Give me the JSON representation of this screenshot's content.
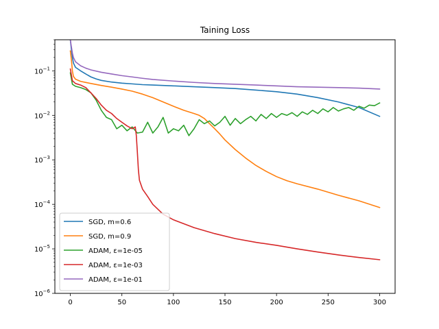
{
  "chart_data": {
    "type": "line",
    "title": "Taining Loss",
    "xlabel": "",
    "ylabel": "",
    "xlim": [
      -15,
      315
    ],
    "ylim": [
      1e-06,
      0.5
    ],
    "yscale": "log",
    "grid": false,
    "legend_position": "lower-left",
    "xticks": [
      0,
      50,
      100,
      150,
      200,
      250,
      300
    ],
    "xtick_labels": [
      "0",
      "50",
      "100",
      "150",
      "200",
      "250",
      "300"
    ],
    "yticks": [
      1e-06,
      1e-05,
      0.0001,
      0.001,
      0.01,
      0.1
    ],
    "ytick_labels": [
      {
        "base": "10",
        "exp": "−6"
      },
      {
        "base": "10",
        "exp": "−5"
      },
      {
        "base": "10",
        "exp": "−4"
      },
      {
        "base": "10",
        "exp": "−3"
      },
      {
        "base": "10",
        "exp": "−2"
      },
      {
        "base": "10",
        "exp": "−1"
      }
    ],
    "series": [
      {
        "name": "SGD, m=0.6",
        "color": "#1f77b4",
        "points": [
          [
            0,
            0.5
          ],
          [
            1,
            0.3
          ],
          [
            2,
            0.2
          ],
          [
            3,
            0.15
          ],
          [
            5,
            0.12
          ],
          [
            10,
            0.1
          ],
          [
            15,
            0.085
          ],
          [
            20,
            0.073
          ],
          [
            25,
            0.066
          ],
          [
            30,
            0.061
          ],
          [
            40,
            0.056
          ],
          [
            50,
            0.053
          ],
          [
            60,
            0.051
          ],
          [
            70,
            0.049
          ],
          [
            80,
            0.048
          ],
          [
            100,
            0.046
          ],
          [
            120,
            0.044
          ],
          [
            140,
            0.042
          ],
          [
            160,
            0.04
          ],
          [
            180,
            0.037
          ],
          [
            200,
            0.034
          ],
          [
            220,
            0.03
          ],
          [
            240,
            0.025
          ],
          [
            260,
            0.02
          ],
          [
            280,
            0.015
          ],
          [
            300,
            0.0095
          ]
        ]
      },
      {
        "name": "SGD, m=0.9",
        "color": "#ff7f0e",
        "points": [
          [
            0,
            0.28
          ],
          [
            1,
            0.18
          ],
          [
            2,
            0.1
          ],
          [
            3,
            0.075
          ],
          [
            5,
            0.065
          ],
          [
            10,
            0.058
          ],
          [
            20,
            0.052
          ],
          [
            30,
            0.047
          ],
          [
            40,
            0.043
          ],
          [
            50,
            0.039
          ],
          [
            60,
            0.035
          ],
          [
            70,
            0.03
          ],
          [
            80,
            0.025
          ],
          [
            90,
            0.02
          ],
          [
            100,
            0.016
          ],
          [
            110,
            0.013
          ],
          [
            120,
            0.011
          ],
          [
            125,
            0.01
          ],
          [
            130,
            0.0085
          ],
          [
            135,
            0.0065
          ],
          [
            140,
            0.005
          ],
          [
            145,
            0.0038
          ],
          [
            150,
            0.0028
          ],
          [
            160,
            0.0017
          ],
          [
            170,
            0.0011
          ],
          [
            180,
            0.00075
          ],
          [
            190,
            0.00055
          ],
          [
            200,
            0.00042
          ],
          [
            210,
            0.00034
          ],
          [
            220,
            0.00029
          ],
          [
            240,
            0.00022
          ],
          [
            260,
            0.00016
          ],
          [
            280,
            0.00012
          ],
          [
            300,
            8.5e-05
          ]
        ]
      },
      {
        "name": "ADAM, ε=1e-05",
        "color": "#2ca02c",
        "points": [
          [
            0,
            0.09
          ],
          [
            2,
            0.05
          ],
          [
            5,
            0.045
          ],
          [
            10,
            0.042
          ],
          [
            15,
            0.038
          ],
          [
            20,
            0.032
          ],
          [
            25,
            0.022
          ],
          [
            30,
            0.013
          ],
          [
            35,
            0.009
          ],
          [
            40,
            0.008
          ],
          [
            45,
            0.005
          ],
          [
            50,
            0.006
          ],
          [
            55,
            0.0045
          ],
          [
            60,
            0.0055
          ],
          [
            65,
            0.004
          ],
          [
            70,
            0.0042
          ],
          [
            75,
            0.007
          ],
          [
            80,
            0.004
          ],
          [
            85,
            0.0055
          ],
          [
            90,
            0.009
          ],
          [
            95,
            0.004
          ],
          [
            100,
            0.005
          ],
          [
            105,
            0.0045
          ],
          [
            110,
            0.006
          ],
          [
            115,
            0.0035
          ],
          [
            120,
            0.005
          ],
          [
            125,
            0.008
          ],
          [
            130,
            0.0065
          ],
          [
            135,
            0.0075
          ],
          [
            140,
            0.0058
          ],
          [
            145,
            0.007
          ],
          [
            150,
            0.0095
          ],
          [
            155,
            0.006
          ],
          [
            160,
            0.0085
          ],
          [
            165,
            0.0065
          ],
          [
            170,
            0.008
          ],
          [
            175,
            0.0095
          ],
          [
            180,
            0.0075
          ],
          [
            185,
            0.0105
          ],
          [
            190,
            0.0085
          ],
          [
            195,
            0.011
          ],
          [
            200,
            0.009
          ],
          [
            205,
            0.011
          ],
          [
            210,
            0.01
          ],
          [
            215,
            0.0115
          ],
          [
            220,
            0.0095
          ],
          [
            225,
            0.012
          ],
          [
            230,
            0.0105
          ],
          [
            235,
            0.013
          ],
          [
            240,
            0.011
          ],
          [
            245,
            0.014
          ],
          [
            250,
            0.012
          ],
          [
            255,
            0.015
          ],
          [
            260,
            0.0125
          ],
          [
            265,
            0.014
          ],
          [
            270,
            0.015
          ],
          [
            275,
            0.013
          ],
          [
            280,
            0.016
          ],
          [
            285,
            0.0145
          ],
          [
            290,
            0.017
          ],
          [
            295,
            0.0165
          ],
          [
            300,
            0.019
          ]
        ]
      },
      {
        "name": "ADAM, ε=1e-03",
        "color": "#d62728",
        "points": [
          [
            0,
            0.11
          ],
          [
            2,
            0.06
          ],
          [
            5,
            0.052
          ],
          [
            10,
            0.048
          ],
          [
            15,
            0.042
          ],
          [
            20,
            0.032
          ],
          [
            25,
            0.024
          ],
          [
            30,
            0.017
          ],
          [
            35,
            0.013
          ],
          [
            40,
            0.011
          ],
          [
            45,
            0.0085
          ],
          [
            50,
            0.007
          ],
          [
            55,
            0.0058
          ],
          [
            60,
            0.005
          ],
          [
            63,
            0.0055
          ],
          [
            64,
            0.0035
          ],
          [
            65,
            0.0015
          ],
          [
            66,
            0.0006
          ],
          [
            67,
            0.00035
          ],
          [
            70,
            0.00022
          ],
          [
            75,
            0.00015
          ],
          [
            80,
            0.0001
          ],
          [
            90,
            6e-05
          ],
          [
            100,
            4.5e-05
          ],
          [
            120,
            3e-05
          ],
          [
            140,
            2.2e-05
          ],
          [
            160,
            1.7e-05
          ],
          [
            180,
            1.4e-05
          ],
          [
            200,
            1.2e-05
          ],
          [
            220,
            1e-05
          ],
          [
            240,
            8.5e-06
          ],
          [
            260,
            7.3e-06
          ],
          [
            280,
            6.4e-06
          ],
          [
            300,
            5.7e-06
          ]
        ]
      },
      {
        "name": "ADAM, ε=1e-01",
        "color": "#9467bd",
        "points": [
          [
            0,
            0.5
          ],
          [
            1,
            0.35
          ],
          [
            2,
            0.25
          ],
          [
            3,
            0.2
          ],
          [
            5,
            0.16
          ],
          [
            10,
            0.13
          ],
          [
            15,
            0.115
          ],
          [
            20,
            0.105
          ],
          [
            30,
            0.093
          ],
          [
            40,
            0.085
          ],
          [
            50,
            0.078
          ],
          [
            60,
            0.073
          ],
          [
            70,
            0.068
          ],
          [
            80,
            0.064
          ],
          [
            100,
            0.059
          ],
          [
            120,
            0.055
          ],
          [
            140,
            0.052
          ],
          [
            160,
            0.05
          ],
          [
            180,
            0.048
          ],
          [
            200,
            0.046
          ],
          [
            220,
            0.044
          ],
          [
            240,
            0.043
          ],
          [
            260,
            0.042
          ],
          [
            280,
            0.041
          ],
          [
            300,
            0.039
          ]
        ]
      }
    ]
  }
}
